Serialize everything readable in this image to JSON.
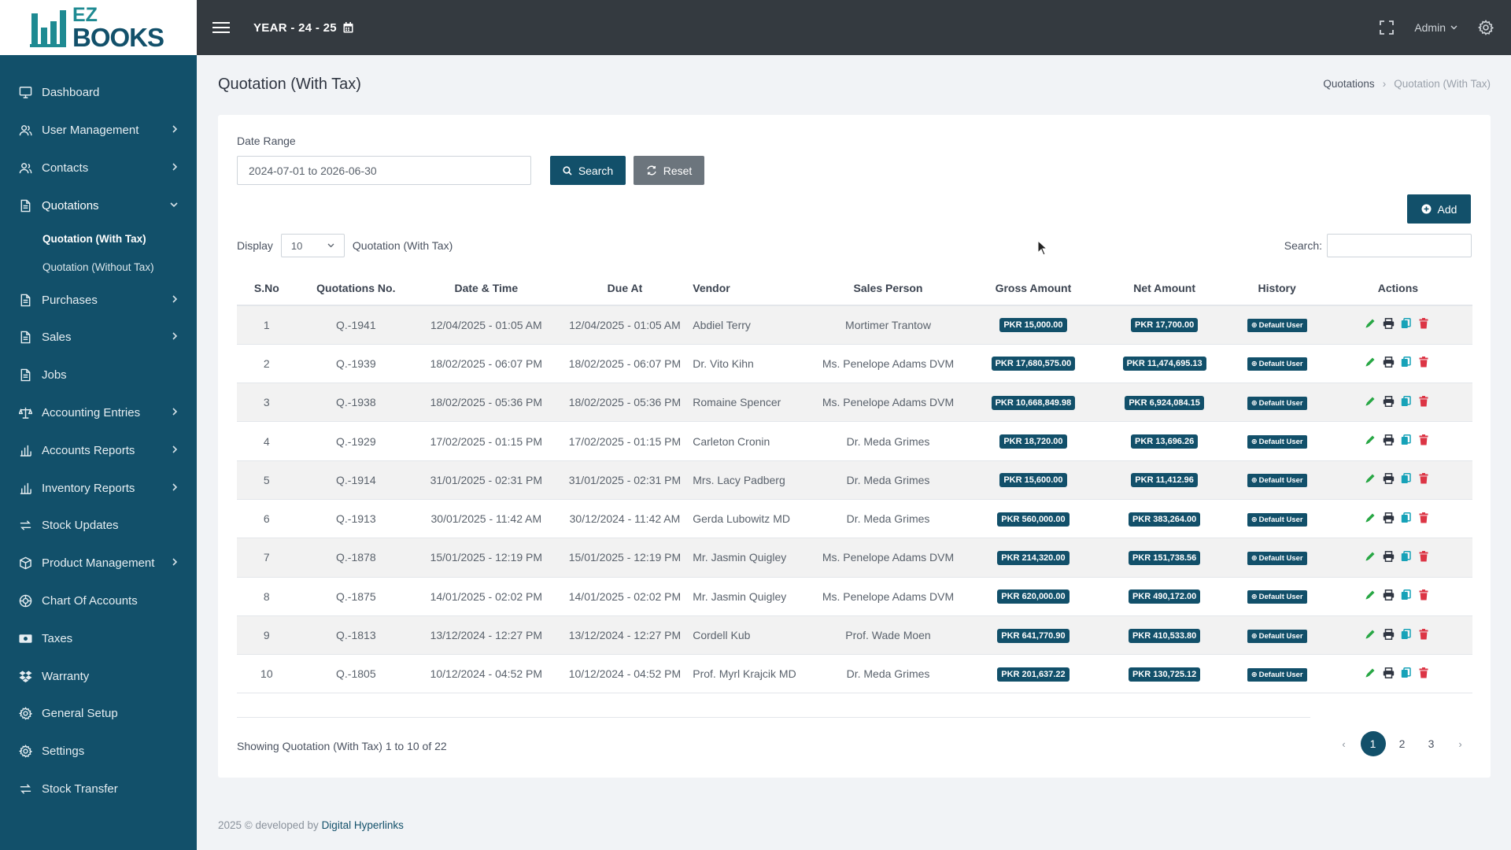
{
  "brand": {
    "line1": "EZ",
    "line2": "BOOKS"
  },
  "topbar": {
    "year": "YEAR - 24 - 25",
    "user": "Admin"
  },
  "sidebar": {
    "items": [
      {
        "label": "Dashboard",
        "icon": "monitor-icon",
        "chevron": false
      },
      {
        "label": "User Management",
        "icon": "user-icon",
        "chevron": true
      },
      {
        "label": "Contacts",
        "icon": "contacts-icon",
        "chevron": true
      },
      {
        "label": "Quotations",
        "icon": "document-icon",
        "chevron": true,
        "expanded": true
      },
      {
        "label": "Purchases",
        "icon": "document-icon",
        "chevron": true
      },
      {
        "label": "Sales",
        "icon": "document-icon",
        "chevron": true
      },
      {
        "label": "Jobs",
        "icon": "document-icon",
        "chevron": false
      },
      {
        "label": "Accounting Entries",
        "icon": "scale-icon",
        "chevron": true
      },
      {
        "label": "Accounts Reports",
        "icon": "bar-chart-icon",
        "chevron": true
      },
      {
        "label": "Inventory Reports",
        "icon": "bar-chart-icon",
        "chevron": true
      },
      {
        "label": "Stock Updates",
        "icon": "swap-icon",
        "chevron": false
      },
      {
        "label": "Product Management",
        "icon": "box-icon",
        "chevron": true
      },
      {
        "label": "Chart Of Accounts",
        "icon": "globe-icon",
        "chevron": false
      },
      {
        "label": "Taxes",
        "icon": "money-icon",
        "chevron": false
      },
      {
        "label": "Warranty",
        "icon": "dropbox-icon",
        "chevron": false
      },
      {
        "label": "General Setup",
        "icon": "gear-icon",
        "chevron": false
      },
      {
        "label": "Settings",
        "icon": "gear-icon",
        "chevron": false
      },
      {
        "label": "Stock Transfer",
        "icon": "swap-icon",
        "chevron": false
      }
    ],
    "sub": {
      "with_tax": "Quotation (With Tax)",
      "without_tax": "Quotation (Without Tax)"
    }
  },
  "page": {
    "title": "Quotation (With Tax)",
    "breadcrumb": {
      "parent": "Quotations",
      "sep": "›",
      "current": "Quotation (With Tax)"
    }
  },
  "filters": {
    "date_label": "Date Range",
    "date_value": "2024-07-01 to 2026-06-30",
    "search_btn": "Search",
    "reset_btn": "Reset",
    "add_btn": "Add",
    "display_label": "Display",
    "display_value": "10",
    "display_suffix": "Quotation (With Tax)",
    "search_label": "Search:"
  },
  "table": {
    "headers": [
      "S.No",
      "Quotations No.",
      "Date & Time",
      "Due At",
      "Vendor",
      "Sales Person",
      "Gross Amount",
      "Net Amount",
      "History",
      "Actions"
    ],
    "rows": [
      {
        "sno": "1",
        "no": "Q.-1941",
        "date": "12/04/2025 - 01:05 AM",
        "due": "12/04/2025 - 01:05 AM",
        "vendor": "Abdiel Terry",
        "sales": "Mortimer Trantow",
        "gross": "PKR 15,000.00",
        "net": "PKR 17,700.00",
        "history": "Default User"
      },
      {
        "sno": "2",
        "no": "Q.-1939",
        "date": "18/02/2025 - 06:07 PM",
        "due": "18/02/2025 - 06:07 PM",
        "vendor": "Dr. Vito Kihn",
        "sales": "Ms. Penelope Adams DVM",
        "gross": "PKR 17,680,575.00",
        "net": "PKR 11,474,695.13",
        "history": "Default User"
      },
      {
        "sno": "3",
        "no": "Q.-1938",
        "date": "18/02/2025 - 05:36 PM",
        "due": "18/02/2025 - 05:36 PM",
        "vendor": "Romaine Spencer",
        "sales": "Ms. Penelope Adams DVM",
        "gross": "PKR 10,668,849.98",
        "net": "PKR 6,924,084.15",
        "history": "Default User"
      },
      {
        "sno": "4",
        "no": "Q.-1929",
        "date": "17/02/2025 - 01:15 PM",
        "due": "17/02/2025 - 01:15 PM",
        "vendor": "Carleton Cronin",
        "sales": "Dr. Meda Grimes",
        "gross": "PKR 18,720.00",
        "net": "PKR 13,696.26",
        "history": "Default User"
      },
      {
        "sno": "5",
        "no": "Q.-1914",
        "date": "31/01/2025 - 02:31 PM",
        "due": "31/01/2025 - 02:31 PM",
        "vendor": "Mrs. Lacy Padberg",
        "sales": "Dr. Meda Grimes",
        "gross": "PKR 15,600.00",
        "net": "PKR 11,412.96",
        "history": "Default User"
      },
      {
        "sno": "6",
        "no": "Q.-1913",
        "date": "30/01/2025 - 11:42 AM",
        "due": "30/12/2024 - 11:42 AM",
        "vendor": "Gerda Lubowitz MD",
        "sales": "Dr. Meda Grimes",
        "gross": "PKR 560,000.00",
        "net": "PKR 383,264.00",
        "history": "Default User"
      },
      {
        "sno": "7",
        "no": "Q.-1878",
        "date": "15/01/2025 - 12:19 PM",
        "due": "15/01/2025 - 12:19 PM",
        "vendor": "Mr. Jasmin Quigley",
        "sales": "Ms. Penelope Adams DVM",
        "gross": "PKR 214,320.00",
        "net": "PKR 151,738.56",
        "history": "Default User"
      },
      {
        "sno": "8",
        "no": "Q.-1875",
        "date": "14/01/2025 - 02:02 PM",
        "due": "14/01/2025 - 02:02 PM",
        "vendor": "Mr. Jasmin Quigley",
        "sales": "Ms. Penelope Adams DVM",
        "gross": "PKR 620,000.00",
        "net": "PKR 490,172.00",
        "history": "Default User"
      },
      {
        "sno": "9",
        "no": "Q.-1813",
        "date": "13/12/2024 - 12:27 PM",
        "due": "13/12/2024 - 12:27 PM",
        "vendor": "Cordell Kub",
        "sales": "Prof. Wade Moen",
        "gross": "PKR 641,770.90",
        "net": "PKR 410,533.80",
        "history": "Default User"
      },
      {
        "sno": "10",
        "no": "Q.-1805",
        "date": "10/12/2024 - 04:52 PM",
        "due": "10/12/2024 - 04:52 PM",
        "vendor": "Prof. Myrl Krajcik MD",
        "sales": "Dr. Meda Grimes",
        "gross": "PKR 201,637.22",
        "net": "PKR 130,725.12",
        "history": "Default User"
      }
    ]
  },
  "pagination": {
    "showing": "Showing Quotation (With Tax) 1 to 10 of 22",
    "prev": "‹",
    "pages": [
      "1",
      "2",
      "3"
    ],
    "next": "›",
    "active": "1"
  },
  "footer": {
    "text": "2025 © developed by",
    "link": "Digital Hyperlinks"
  },
  "colors": {
    "primary": "#12506a",
    "topbar": "#343a40",
    "edit": "#28a745",
    "copy": "#17a2b8",
    "delete": "#dc3545"
  }
}
